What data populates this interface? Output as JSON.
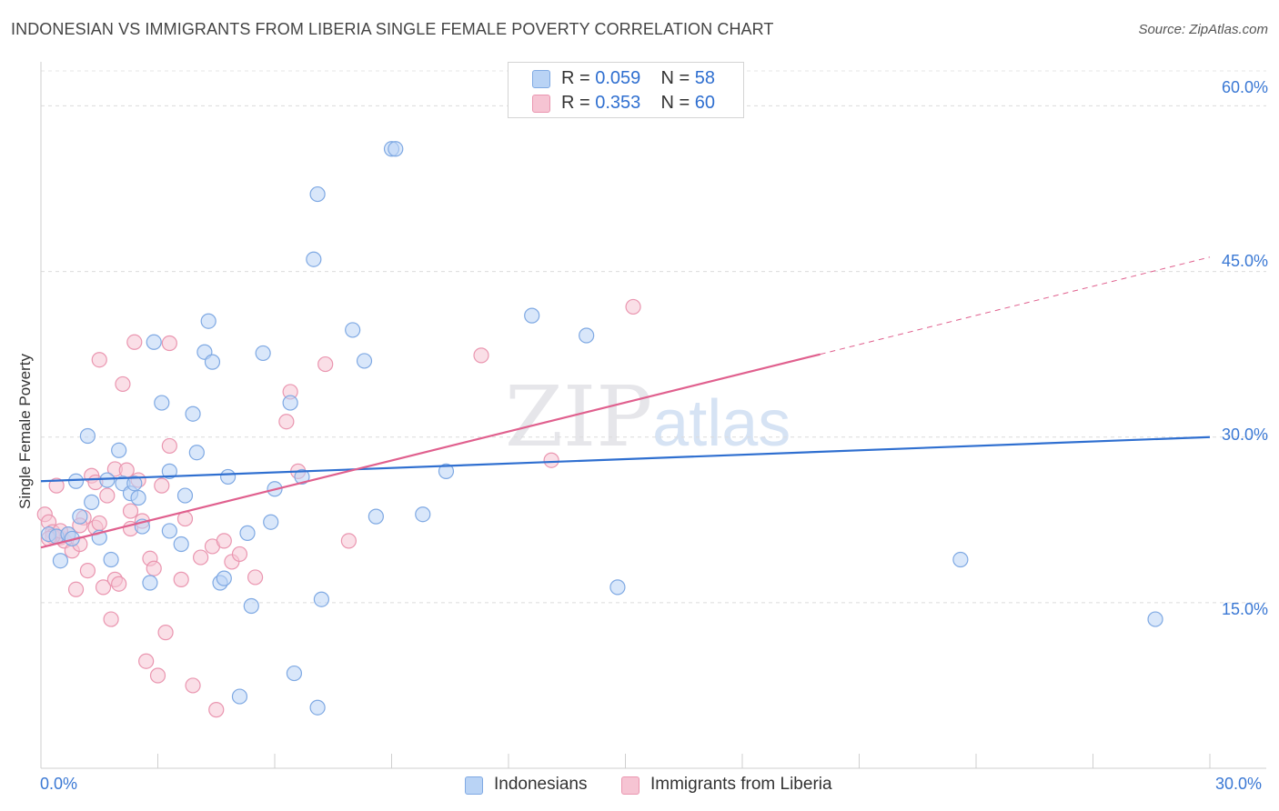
{
  "title": "INDONESIAN VS IMMIGRANTS FROM LIBERIA SINGLE FEMALE POVERTY CORRELATION CHART",
  "source": "Source: ZipAtlas.com",
  "watermark": {
    "zip": "ZIP",
    "atlas": "atlas"
  },
  "legend_stats": [
    {
      "r_label": "R =",
      "r_value": "0.059",
      "n_label": "N =",
      "n_value": "58"
    },
    {
      "r_label": "R =",
      "r_value": "0.353",
      "n_label": "N =",
      "n_value": "60"
    }
  ],
  "legend_series": [
    "Indonesians",
    "Immigrants from Liberia"
  ],
  "y_tick_labels": [
    "60.0%",
    "45.0%",
    "30.0%",
    "15.0%"
  ],
  "x_tick_labels": [
    "0.0%",
    "30.0%"
  ],
  "colors": {
    "indonesians_fill": "#b9d3f5",
    "indonesians_stroke": "#7fa9e3",
    "indonesians_line": "#2f6fd0",
    "liberia_fill": "#f6c4d3",
    "liberia_stroke": "#ea96b0",
    "liberia_line": "#e0608e"
  },
  "chart_data": {
    "type": "scatter",
    "title": "INDONESIAN VS IMMIGRANTS FROM LIBERIA SINGLE FEMALE POVERTY CORRELATION CHART",
    "xlabel": "",
    "ylabel": "Single Female Poverty",
    "xlim": [
      0,
      30
    ],
    "ylim": [
      0,
      63
    ],
    "y_ticks": [
      15,
      30,
      45,
      60
    ],
    "series": [
      {
        "name": "Indonesians",
        "points": [
          [
            0.2,
            21.2
          ],
          [
            0.4,
            21.0
          ],
          [
            0.5,
            18.8
          ],
          [
            0.7,
            21.2
          ],
          [
            0.8,
            20.8
          ],
          [
            0.9,
            26.0
          ],
          [
            1.0,
            22.8
          ],
          [
            1.2,
            30.1
          ],
          [
            1.3,
            24.1
          ],
          [
            1.5,
            20.9
          ],
          [
            1.7,
            26.1
          ],
          [
            1.8,
            18.9
          ],
          [
            2.0,
            28.8
          ],
          [
            2.1,
            25.8
          ],
          [
            2.3,
            24.9
          ],
          [
            2.4,
            25.8
          ],
          [
            2.5,
            24.5
          ],
          [
            2.6,
            21.9
          ],
          [
            2.8,
            16.8
          ],
          [
            2.9,
            38.6
          ],
          [
            3.1,
            33.1
          ],
          [
            3.3,
            26.9
          ],
          [
            3.3,
            21.5
          ],
          [
            3.6,
            20.3
          ],
          [
            3.7,
            24.7
          ],
          [
            3.9,
            32.1
          ],
          [
            4.0,
            28.6
          ],
          [
            4.2,
            37.7
          ],
          [
            4.3,
            40.5
          ],
          [
            4.4,
            36.8
          ],
          [
            4.6,
            16.8
          ],
          [
            4.7,
            17.2
          ],
          [
            4.8,
            26.4
          ],
          [
            5.3,
            21.3
          ],
          [
            5.4,
            14.7
          ],
          [
            5.7,
            37.6
          ],
          [
            5.9,
            22.3
          ],
          [
            6.0,
            25.3
          ],
          [
            6.4,
            33.1
          ],
          [
            6.5,
            8.6
          ],
          [
            6.7,
            26.4
          ],
          [
            7.0,
            46.1
          ],
          [
            7.1,
            52.0
          ],
          [
            7.2,
            15.3
          ],
          [
            8.0,
            39.7
          ],
          [
            8.3,
            36.9
          ],
          [
            8.6,
            22.8
          ],
          [
            9.0,
            56.1
          ],
          [
            9.1,
            56.1
          ],
          [
            9.8,
            23.0
          ],
          [
            10.4,
            26.9
          ],
          [
            12.6,
            41.0
          ],
          [
            14.0,
            39.2
          ],
          [
            14.8,
            16.4
          ],
          [
            23.6,
            18.9
          ],
          [
            28.6,
            13.5
          ],
          [
            7.1,
            5.5
          ],
          [
            5.1,
            6.5
          ]
        ]
      },
      {
        "name": "Immigrants from Liberia",
        "points": [
          [
            0.1,
            23.0
          ],
          [
            0.2,
            22.3
          ],
          [
            0.3,
            21.4
          ],
          [
            0.4,
            25.6
          ],
          [
            0.5,
            20.9
          ],
          [
            0.6,
            20.6
          ],
          [
            0.7,
            21.2
          ],
          [
            0.8,
            19.7
          ],
          [
            0.9,
            16.2
          ],
          [
            1.0,
            20.3
          ],
          [
            1.1,
            22.7
          ],
          [
            1.2,
            17.9
          ],
          [
            1.3,
            26.5
          ],
          [
            1.4,
            21.8
          ],
          [
            1.4,
            25.9
          ],
          [
            1.5,
            22.2
          ],
          [
            1.5,
            37.0
          ],
          [
            1.6,
            16.4
          ],
          [
            1.7,
            24.7
          ],
          [
            1.8,
            13.5
          ],
          [
            1.9,
            17.1
          ],
          [
            1.9,
            27.1
          ],
          [
            2.0,
            16.7
          ],
          [
            2.1,
            34.8
          ],
          [
            2.2,
            27.0
          ],
          [
            2.3,
            21.7
          ],
          [
            2.3,
            23.3
          ],
          [
            2.4,
            38.6
          ],
          [
            2.5,
            26.1
          ],
          [
            2.6,
            22.4
          ],
          [
            2.7,
            9.7
          ],
          [
            2.8,
            19.0
          ],
          [
            2.9,
            18.1
          ],
          [
            3.0,
            8.4
          ],
          [
            3.1,
            25.6
          ],
          [
            3.2,
            12.3
          ],
          [
            3.3,
            38.5
          ],
          [
            3.3,
            29.2
          ],
          [
            3.6,
            17.1
          ],
          [
            3.7,
            22.6
          ],
          [
            3.9,
            7.5
          ],
          [
            4.1,
            19.1
          ],
          [
            4.4,
            20.1
          ],
          [
            4.5,
            5.3
          ],
          [
            4.7,
            20.6
          ],
          [
            4.9,
            18.7
          ],
          [
            5.1,
            19.4
          ],
          [
            5.5,
            17.3
          ],
          [
            6.3,
            31.4
          ],
          [
            6.4,
            34.1
          ],
          [
            6.6,
            26.9
          ],
          [
            7.3,
            36.6
          ],
          [
            7.9,
            20.6
          ],
          [
            11.3,
            37.4
          ],
          [
            13.1,
            27.9
          ],
          [
            15.2,
            41.8
          ],
          [
            0.3,
            21.0
          ],
          [
            0.5,
            21.5
          ],
          [
            1.0,
            22.0
          ],
          [
            0.2,
            20.8
          ]
        ]
      }
    ],
    "trend_lines": [
      {
        "series": "Indonesians",
        "x": [
          0,
          30
        ],
        "y": [
          26.0,
          30.0
        ],
        "style": "solid"
      },
      {
        "series": "Immigrants from Liberia",
        "x": [
          0,
          20
        ],
        "y": [
          20.0,
          37.5
        ],
        "style": "solid"
      },
      {
        "series": "Immigrants from Liberia",
        "x": [
          20,
          30
        ],
        "y": [
          37.5,
          46.3
        ],
        "style": "dashed"
      }
    ],
    "grid": "horizontal dashed",
    "legend": "top-center"
  }
}
